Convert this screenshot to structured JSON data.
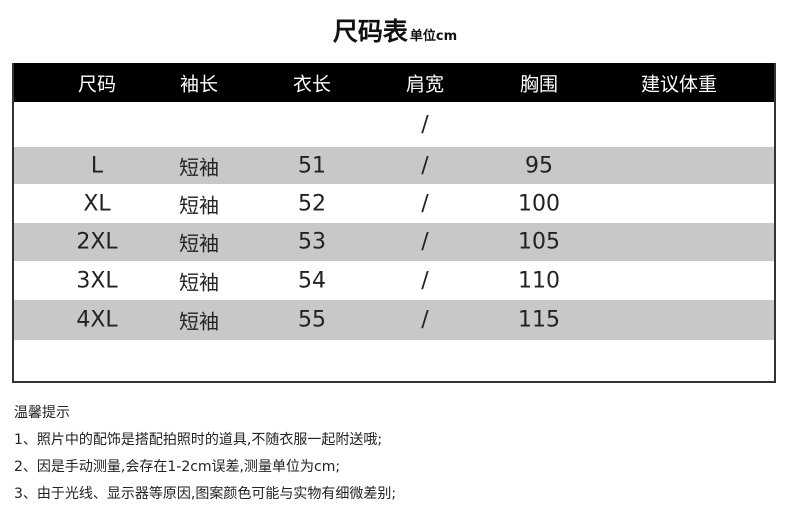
{
  "title": {
    "main": "尺码表",
    "unit": "单位cm"
  },
  "headers": [
    "尺码",
    "袖长",
    "衣长",
    "肩宽",
    "胸围",
    "建议体重"
  ],
  "rows": [
    {
      "size": "",
      "sleeve": "",
      "length": "",
      "shoulder": "/",
      "chest": "",
      "weight": ""
    },
    {
      "size": "L",
      "sleeve": "短袖",
      "length": "51",
      "shoulder": "/",
      "chest": "95",
      "weight": ""
    },
    {
      "size": "XL",
      "sleeve": "短袖",
      "length": "52",
      "shoulder": "/",
      "chest": "100",
      "weight": ""
    },
    {
      "size": "2XL",
      "sleeve": "短袖",
      "length": "53",
      "shoulder": "/",
      "chest": "105",
      "weight": ""
    },
    {
      "size": "3XL",
      "sleeve": "短袖",
      "length": "54",
      "shoulder": "/",
      "chest": "110",
      "weight": ""
    },
    {
      "size": "4XL",
      "sleeve": "短袖",
      "length": "55",
      "shoulder": "/",
      "chest": "115",
      "weight": ""
    },
    {
      "size": "",
      "sleeve": "",
      "length": "",
      "shoulder": "",
      "chest": "",
      "weight": ""
    }
  ],
  "notes": {
    "heading": "温馨提示",
    "items": [
      "1、照片中的配饰是搭配拍照时的道具,不随衣服一起附送哦;",
      "2、因是手动测量,会存在1-2cm误差,测量单位为cm;",
      "3、由于光线、显示器等原因,图案颜色可能与实物有细微差别;"
    ]
  },
  "colors": {
    "header_bg": "#000000",
    "stripe": "#c8c8c8"
  }
}
